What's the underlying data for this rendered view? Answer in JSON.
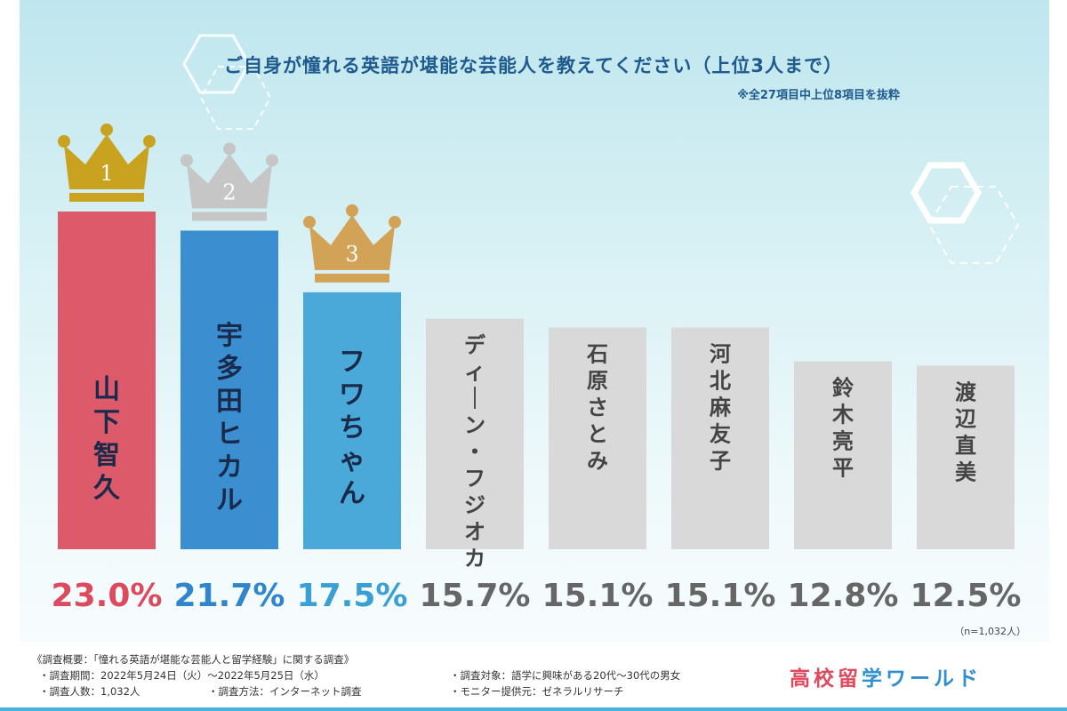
{
  "chart_data": {
    "type": "bar",
    "title": "ご自身が憧れる英語が堪能な芸能人を教えてください（上位3人まで）",
    "subtitle": "※全27項目中上位8項目を抜粋",
    "categories": [
      "山下智久",
      "宇多田ヒカル",
      "フワちゃん",
      "ディーン・フジオカ",
      "石原さとみ",
      "河北麻友子",
      "鈴木亮平",
      "渡辺直美"
    ],
    "values": [
      23.0,
      21.7,
      17.5,
      15.7,
      15.1,
      15.1,
      12.8,
      12.5
    ],
    "value_labels": [
      "23.0%",
      "21.7%",
      "17.5%",
      "15.7%",
      "15.1%",
      "15.1%",
      "12.8%",
      "12.5%"
    ],
    "ranks": [
      "1",
      "2",
      "3"
    ],
    "ylim": [
      0,
      23.0
    ],
    "grid": false,
    "colors": {
      "bars": [
        "#dd5a6b",
        "#3b8ed0",
        "#4aa9d9",
        "#d9d9d9",
        "#d9d9d9",
        "#d9d9d9",
        "#d9d9d9",
        "#d9d9d9"
      ],
      "bar_text": [
        "#1a2a4a",
        "#1a2a4a",
        "#1a2a4a",
        "#444444",
        "#444444",
        "#444444",
        "#444444",
        "#444444"
      ],
      "pct_text": [
        "#dd4a5e",
        "#2f86cc",
        "#3a9fd5",
        "#666666",
        "#666666",
        "#666666",
        "#666666",
        "#666666"
      ],
      "crowns": [
        "#c9a320",
        "#c6c6c6",
        "#d2a356"
      ]
    },
    "sample_note": "（n=1,032人）"
  },
  "footer": {
    "overview": "《調査概要：「憧れる英語が堪能な芸能人と留学経験」に関する調査》",
    "period": "・調査期間：2022年5月24日（火）～2022年5月25日（水）",
    "target": "・調査対象：語学に興味がある20代～30代の男女",
    "count": "・調査人数：1,032人",
    "method": "・調査方法：インターネット調査",
    "provider": "・モニター提供元：ゼネラルリサーチ"
  },
  "logo": {
    "part1": "高校留",
    "part2": "学ワールド"
  }
}
